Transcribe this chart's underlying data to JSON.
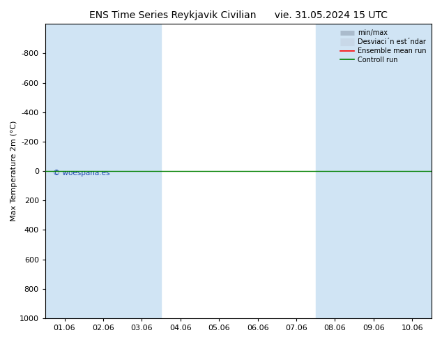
{
  "title_left": "ENS Time Series Reykjavik Civilian",
  "title_right": "vie. 31.05.2024 15 UTC",
  "ylabel": "Max Temperature 2m (°C)",
  "ylim": [
    -1000,
    1000
  ],
  "yticks": [
    -800,
    -600,
    -400,
    -200,
    0,
    200,
    400,
    600,
    800,
    1000
  ],
  "xtick_labels": [
    "01.06",
    "02.06",
    "03.06",
    "04.06",
    "05.06",
    "06.06",
    "07.06",
    "08.06",
    "09.06",
    "10.06"
  ],
  "xtick_positions": [
    0,
    1,
    2,
    3,
    4,
    5,
    6,
    7,
    8,
    9
  ],
  "band_positions": [
    0,
    1,
    2,
    7,
    8,
    9
  ],
  "green_line_y": 0,
  "copyright_text": "© woespana.es",
  "bg_color": "white",
  "plot_bg_color": "#ffffff",
  "band_color": "#d0e4f4",
  "title_fontsize": 10,
  "label_fontsize": 8,
  "tick_fontsize": 8
}
